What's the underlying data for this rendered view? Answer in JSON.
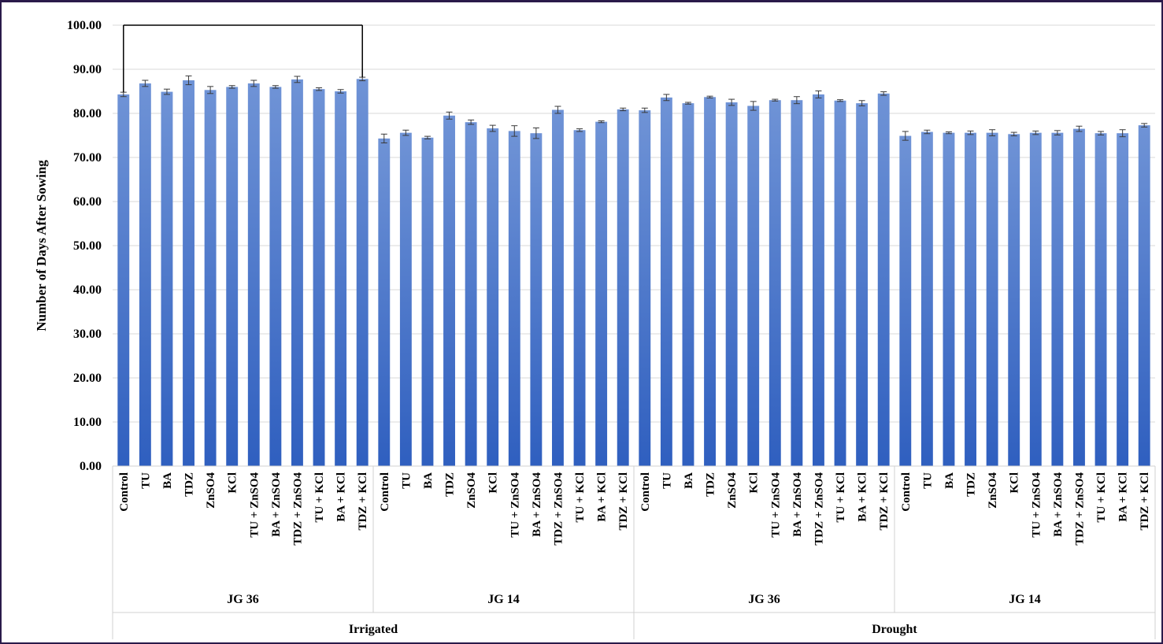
{
  "chart_data": {
    "type": "bar",
    "title": "",
    "xlabel": "",
    "ylabel": "Number of Days After Sowing",
    "ylim": [
      0,
      100
    ],
    "yticks": [
      "0.00",
      "10.00",
      "20.00",
      "30.00",
      "40.00",
      "50.00",
      "60.00",
      "70.00",
      "80.00",
      "90.00",
      "100.00"
    ],
    "grid": true,
    "legend": "none",
    "bar_color_top": "#6f93d6",
    "bar_color_bottom": "#2f5fbf",
    "treatments": [
      "Control",
      "TU",
      "BA",
      "TDZ",
      "ZnSO4",
      "KCl",
      "TU + ZnSO4",
      "BA + ZnSO4",
      "TDZ + ZnSO4",
      "TU + KCl",
      "BA + KCl",
      "TDZ + KCl"
    ],
    "groups": [
      {
        "condition": "Irrigated",
        "variety": "JG 36",
        "values": [
          84.3,
          86.8,
          84.9,
          87.5,
          85.3,
          86.0,
          86.8,
          86.0,
          87.7,
          85.5,
          85.0,
          87.8
        ],
        "errors": [
          0.5,
          0.7,
          0.6,
          1.0,
          0.8,
          0.3,
          0.7,
          0.3,
          0.7,
          0.3,
          0.4,
          0.4
        ]
      },
      {
        "condition": "Irrigated",
        "variety": "JG 14",
        "values": [
          74.3,
          75.6,
          74.5,
          79.5,
          78.0,
          76.6,
          76.0,
          75.5,
          80.8,
          76.2,
          78.1,
          80.9
        ],
        "errors": [
          1.0,
          0.6,
          0.3,
          0.8,
          0.5,
          0.7,
          1.2,
          1.2,
          0.8,
          0.3,
          0.2,
          0.3
        ]
      },
      {
        "condition": "Drought",
        "variety": "JG 36",
        "values": [
          80.7,
          83.6,
          82.3,
          83.7,
          82.5,
          81.7,
          83.0,
          83.0,
          84.3,
          82.9,
          82.3,
          84.5
        ],
        "errors": [
          0.5,
          0.7,
          0.2,
          0.2,
          0.7,
          1.0,
          0.2,
          0.8,
          0.8,
          0.2,
          0.6,
          0.4
        ]
      },
      {
        "condition": "Drought",
        "variety": "JG 14",
        "values": [
          74.9,
          75.8,
          75.6,
          75.6,
          75.6,
          75.3,
          75.6,
          75.6,
          76.5,
          75.5,
          75.5,
          77.3
        ],
        "errors": [
          1.0,
          0.4,
          0.2,
          0.4,
          0.7,
          0.4,
          0.4,
          0.5,
          0.6,
          0.4,
          0.8,
          0.4
        ]
      }
    ],
    "conditions": [
      "Irrigated",
      "Drought"
    ],
    "annotation_bracket": {
      "from_bar": 0,
      "to_bar": 11,
      "level": 100
    }
  }
}
